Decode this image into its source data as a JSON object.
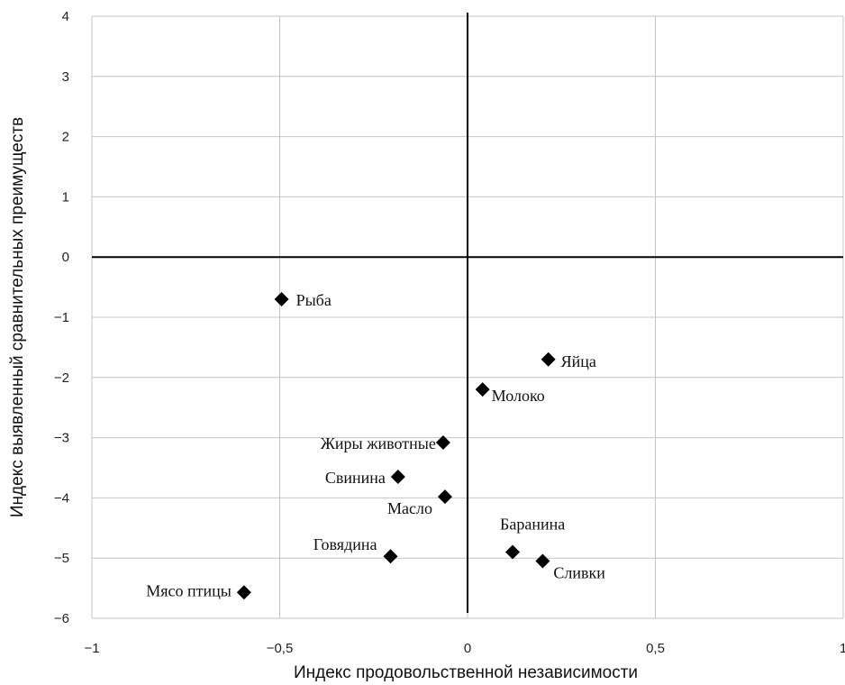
{
  "chart_data": {
    "type": "scatter",
    "xlabel": "Индекс продовольственной независимости",
    "ylabel": "Индекс выявленный сравнительных преимуществ",
    "xlim": [
      -1,
      1
    ],
    "ylim": [
      -6,
      4
    ],
    "x_ticks": [
      -1,
      -0.5,
      0,
      0.5,
      1
    ],
    "x_tick_labels": [
      "−1",
      "−0,5",
      "0",
      "0,5",
      "1"
    ],
    "y_ticks": [
      -6,
      -5,
      -4,
      -3,
      -2,
      -1,
      0,
      1,
      2,
      3,
      4
    ],
    "y_tick_labels": [
      "−6",
      "−5",
      "−4",
      "−3",
      "−2",
      "−1",
      "0",
      "1",
      "2",
      "3",
      "4"
    ],
    "grid": true,
    "marker": "diamond",
    "marker_color": "#000000",
    "points": [
      {
        "label": "Рыба",
        "x": -0.495,
        "y": -0.7
      },
      {
        "label": "Яйца",
        "x": 0.215,
        "y": -1.7
      },
      {
        "label": "Молоко",
        "x": 0.04,
        "y": -2.2
      },
      {
        "label": "Жиры животные",
        "x": -0.065,
        "y": -3.08
      },
      {
        "label": "Свинина",
        "x": -0.185,
        "y": -3.65
      },
      {
        "label": "Масло",
        "x": -0.06,
        "y": -3.98
      },
      {
        "label": "Баранина",
        "x": 0.12,
        "y": -4.9
      },
      {
        "label": "Сливки",
        "x": 0.2,
        "y": -5.05
      },
      {
        "label": "Говядина",
        "x": -0.205,
        "y": -4.97
      },
      {
        "label": "Мясо птицы",
        "x": -0.595,
        "y": -5.57
      }
    ]
  }
}
